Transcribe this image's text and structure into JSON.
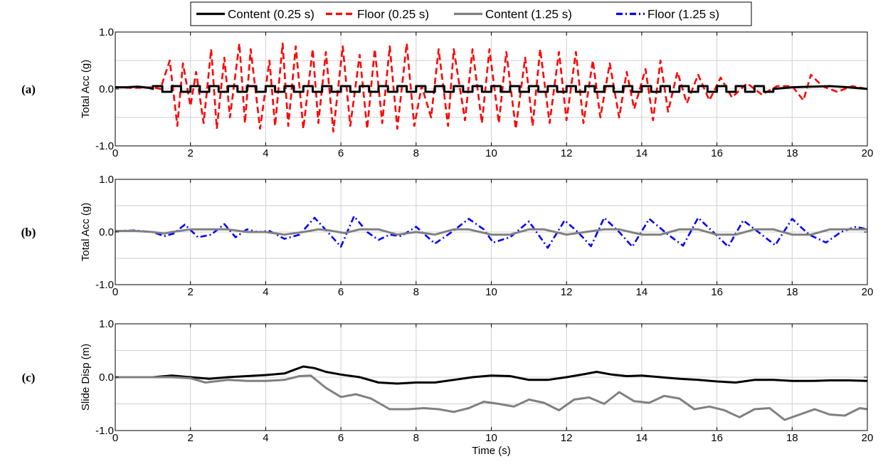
{
  "legend": {
    "placement": "top-center",
    "entries": [
      {
        "label": "Content (0.25 s)",
        "color": "#000000",
        "style": "solid"
      },
      {
        "label": "Floor (0.25 s)",
        "color": "#ff0000",
        "style": "dashed"
      },
      {
        "label": "Content (1.25 s)",
        "color": "#808080",
        "style": "solid"
      },
      {
        "label": "Floor (1.25 s)",
        "color": "#0000ff",
        "style": "dashdot"
      }
    ]
  },
  "chart_data": [
    {
      "type": "line",
      "panel_label": "(a)",
      "ylabel": "Total Acc (g)",
      "xlabel": "",
      "xlim": [
        0,
        20
      ],
      "ylim": [
        -1,
        1
      ],
      "xticks": [
        0,
        2,
        4,
        6,
        8,
        10,
        12,
        14,
        16,
        18,
        20
      ],
      "yticks": [
        "-1.0",
        "0.0",
        "1.0"
      ],
      "grid": true,
      "series": [
        {
          "name": "Floor (0.25 s)",
          "color": "#ff0000",
          "style": "dashed",
          "x": [
            0,
            0.5,
            1.0,
            1.2,
            1.45,
            1.65,
            1.8,
            2.0,
            2.15,
            2.35,
            2.55,
            2.7,
            2.9,
            3.05,
            3.3,
            3.45,
            3.6,
            3.85,
            4.1,
            4.25,
            4.45,
            4.6,
            4.8,
            5.0,
            5.25,
            5.4,
            5.6,
            5.8,
            6.05,
            6.25,
            6.5,
            6.7,
            6.9,
            7.1,
            7.3,
            7.5,
            7.75,
            7.95,
            8.15,
            8.4,
            8.6,
            8.85,
            9.0,
            9.3,
            9.5,
            9.75,
            9.95,
            10.2,
            10.4,
            10.65,
            10.9,
            11.1,
            11.3,
            11.55,
            11.8,
            12.0,
            12.25,
            12.45,
            12.7,
            12.9,
            13.15,
            13.4,
            13.6,
            13.8,
            14.1,
            14.3,
            14.5,
            14.7,
            14.95,
            15.2,
            15.5,
            15.8,
            16.1,
            16.4,
            16.8,
            17.2,
            17.6,
            18.0,
            18.3,
            18.5,
            18.8,
            19.2,
            19.6,
            20.0
          ],
          "y": [
            0.03,
            0.02,
            0.03,
            0.0,
            0.5,
            -0.65,
            0.45,
            -0.3,
            0.3,
            -0.6,
            0.7,
            -0.7,
            0.55,
            -0.5,
            0.8,
            -0.6,
            0.7,
            -0.7,
            0.5,
            -0.65,
            0.8,
            -0.65,
            0.75,
            -0.7,
            0.7,
            -0.6,
            0.65,
            -0.75,
            0.75,
            -0.65,
            0.6,
            -0.7,
            0.7,
            -0.6,
            0.75,
            -0.7,
            0.8,
            -0.65,
            0.05,
            -0.5,
            0.7,
            -0.65,
            0.7,
            -0.55,
            0.7,
            -0.6,
            0.7,
            -0.6,
            0.65,
            -0.7,
            0.55,
            -0.65,
            0.7,
            -0.6,
            0.65,
            -0.55,
            0.65,
            -0.6,
            0.5,
            -0.5,
            0.45,
            -0.5,
            0.3,
            -0.35,
            0.35,
            -0.55,
            0.5,
            -0.4,
            0.3,
            -0.25,
            0.25,
            -0.2,
            0.2,
            -0.15,
            0.1,
            -0.1,
            0.05,
            0.05,
            -0.2,
            0.25,
            0.05,
            -0.05,
            0.05,
            0.0
          ]
        },
        {
          "name": "Content (0.25 s)",
          "color": "#000000",
          "style": "solid",
          "x": [
            0,
            0.3,
            0.6,
            0.9,
            1.0,
            17.5,
            18.0,
            18.5,
            19.0,
            19.5,
            20.0
          ],
          "y": [
            0.03,
            0.03,
            0.04,
            0.02,
            0.0,
            0.0,
            0.03,
            0.04,
            0.05,
            0.03,
            0.0
          ],
          "square_wave_from": 1.0,
          "square_wave_to": 17.5,
          "square_wave_amplitude": 0.05,
          "square_wave_period": 0.25
        }
      ]
    },
    {
      "type": "line",
      "panel_label": "(b)",
      "ylabel": "Total Acc (g)",
      "xlabel": "",
      "xlim": [
        0,
        20
      ],
      "ylim": [
        -1,
        1
      ],
      "xticks": [
        0,
        2,
        4,
        6,
        8,
        10,
        12,
        14,
        16,
        18,
        20
      ],
      "yticks": [
        "-1.0",
        "0.0",
        "1.0"
      ],
      "grid": true,
      "series": [
        {
          "name": "Floor (1.25 s)",
          "color": "#0000ff",
          "style": "dashdot",
          "x": [
            0,
            0.5,
            1.0,
            1.3,
            1.55,
            1.85,
            2.2,
            2.55,
            2.9,
            3.2,
            3.5,
            3.8,
            4.1,
            4.5,
            4.9,
            5.3,
            5.65,
            6.0,
            6.35,
            6.7,
            7.0,
            7.3,
            7.6,
            8.0,
            8.5,
            8.95,
            9.4,
            9.8,
            10.05,
            10.5,
            11.0,
            11.5,
            11.95,
            12.3,
            12.65,
            13.0,
            13.4,
            13.75,
            14.2,
            14.7,
            15.1,
            15.5,
            15.9,
            16.3,
            16.7,
            17.1,
            17.55,
            18.0,
            18.45,
            18.9,
            19.3,
            19.7,
            20.0
          ],
          "y": [
            0.02,
            0.03,
            0.0,
            -0.08,
            -0.03,
            0.14,
            -0.1,
            -0.05,
            0.15,
            -0.1,
            0.05,
            0.0,
            0.02,
            -0.13,
            -0.05,
            0.27,
            0.0,
            -0.28,
            0.3,
            0.0,
            -0.15,
            -0.05,
            -0.08,
            0.1,
            -0.22,
            0.0,
            0.25,
            0.05,
            -0.2,
            -0.1,
            0.2,
            -0.3,
            0.22,
            0.0,
            -0.27,
            0.27,
            0.0,
            -0.28,
            0.25,
            -0.05,
            -0.26,
            0.27,
            0.0,
            -0.28,
            0.22,
            0.0,
            -0.25,
            0.25,
            -0.05,
            -0.2,
            0.0,
            0.1,
            0.05
          ]
        },
        {
          "name": "Content (1.25 s)",
          "color": "#808080",
          "style": "solid",
          "x": [
            0,
            0.5,
            1.0,
            1.3,
            1.5,
            2.0,
            3.0,
            3.5,
            4.0,
            4.5,
            5.0,
            5.4,
            5.7,
            6.1,
            6.5,
            7.0,
            7.5,
            8.0,
            8.5,
            9.0,
            9.4,
            10.0,
            10.5,
            11.0,
            11.4,
            12.0,
            12.5,
            13.0,
            13.4,
            14.0,
            14.5,
            15.0,
            15.5,
            16.0,
            16.5,
            17.0,
            17.5,
            18.0,
            18.5,
            19.0,
            19.5,
            20.0
          ],
          "y": [
            0.02,
            0.02,
            0.0,
            -0.03,
            0.0,
            0.05,
            0.05,
            0.0,
            0.0,
            -0.05,
            0.0,
            0.05,
            0.03,
            -0.02,
            0.05,
            0.05,
            -0.05,
            0.0,
            -0.05,
            0.05,
            0.05,
            -0.05,
            -0.05,
            0.05,
            0.05,
            -0.05,
            0.0,
            0.05,
            0.05,
            -0.05,
            -0.05,
            0.05,
            0.05,
            -0.05,
            -0.05,
            0.05,
            0.05,
            -0.05,
            -0.05,
            0.05,
            0.05,
            0.05
          ]
        }
      ]
    },
    {
      "type": "line",
      "panel_label": "(c)",
      "ylabel": "Slide Disp (m)",
      "xlabel": "Time (s)",
      "xlim": [
        0,
        20
      ],
      "ylim": [
        -1,
        1
      ],
      "xticks": [
        0,
        2,
        4,
        6,
        8,
        10,
        12,
        14,
        16,
        18,
        20
      ],
      "yticks": [
        "-1.0",
        "0.0",
        "1.0"
      ],
      "grid": true,
      "series": [
        {
          "name": "Content (0.25 s)",
          "color": "#000000",
          "style": "solid",
          "x": [
            0,
            0.5,
            1.0,
            1.5,
            2.0,
            2.5,
            3.0,
            3.5,
            4.0,
            4.5,
            4.8,
            5.0,
            5.3,
            5.6,
            6.0,
            6.5,
            7.0,
            7.5,
            8.0,
            8.5,
            9.0,
            9.5,
            10.0,
            10.5,
            11.0,
            11.5,
            12.0,
            12.5,
            12.8,
            13.2,
            13.6,
            14.0,
            14.5,
            15.0,
            15.5,
            16.0,
            16.5,
            17.0,
            17.5,
            18.0,
            18.5,
            19.0,
            19.5,
            20.0
          ],
          "y": [
            0.0,
            0.0,
            0.0,
            0.03,
            0.0,
            -0.03,
            0.0,
            0.02,
            0.04,
            0.07,
            0.15,
            0.2,
            0.17,
            0.1,
            0.05,
            0.0,
            -0.1,
            -0.12,
            -0.1,
            -0.1,
            -0.05,
            0.0,
            0.03,
            0.02,
            -0.05,
            -0.05,
            0.0,
            0.06,
            0.1,
            0.05,
            0.02,
            0.03,
            0.0,
            -0.03,
            -0.05,
            -0.08,
            -0.1,
            -0.05,
            -0.05,
            -0.07,
            -0.07,
            -0.06,
            -0.06,
            -0.07
          ]
        },
        {
          "name": "Content (1.25 s)",
          "color": "#808080",
          "style": "solid",
          "x": [
            0,
            0.5,
            1.0,
            1.5,
            2.0,
            2.4,
            3.0,
            3.5,
            4.0,
            4.5,
            4.9,
            5.2,
            5.6,
            6.0,
            6.4,
            6.8,
            7.3,
            7.8,
            8.2,
            8.6,
            9.0,
            9.4,
            9.8,
            10.2,
            10.6,
            11.0,
            11.4,
            11.8,
            12.2,
            12.6,
            13.0,
            13.4,
            13.8,
            14.2,
            14.6,
            15.0,
            15.4,
            15.8,
            16.2,
            16.6,
            17.0,
            17.4,
            17.8,
            18.2,
            18.6,
            19.0,
            19.4,
            19.8,
            20.0
          ],
          "y": [
            0.0,
            0.0,
            0.0,
            0.0,
            -0.02,
            -0.1,
            -0.05,
            -0.07,
            -0.07,
            -0.05,
            0.02,
            0.03,
            -0.2,
            -0.37,
            -0.32,
            -0.4,
            -0.6,
            -0.6,
            -0.58,
            -0.6,
            -0.65,
            -0.58,
            -0.46,
            -0.5,
            -0.55,
            -0.42,
            -0.48,
            -0.62,
            -0.42,
            -0.38,
            -0.5,
            -0.28,
            -0.45,
            -0.48,
            -0.35,
            -0.4,
            -0.6,
            -0.55,
            -0.62,
            -0.75,
            -0.6,
            -0.58,
            -0.8,
            -0.7,
            -0.6,
            -0.7,
            -0.72,
            -0.58,
            -0.6
          ]
        }
      ]
    }
  ]
}
